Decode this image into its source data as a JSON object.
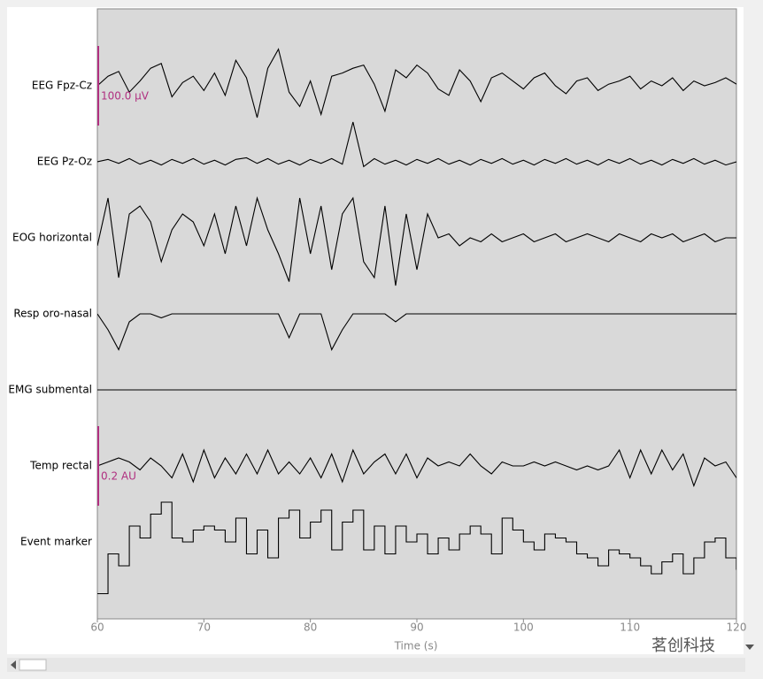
{
  "chart_data": {
    "type": "traces",
    "xlabel": "Time (s)",
    "xlim": [
      60,
      120
    ],
    "xticks": [
      60,
      70,
      80,
      90,
      100,
      110,
      120
    ],
    "x": [
      60,
      61,
      62,
      63,
      64,
      65,
      66,
      67,
      68,
      69,
      70,
      71,
      72,
      73,
      74,
      75,
      76,
      77,
      78,
      79,
      80,
      81,
      82,
      83,
      84,
      85,
      86,
      87,
      88,
      89,
      90,
      91,
      92,
      93,
      94,
      95,
      96,
      97,
      98,
      99,
      100,
      101,
      102,
      103,
      104,
      105,
      106,
      107,
      108,
      109,
      110,
      111,
      112,
      113,
      114,
      115,
      116,
      117,
      118,
      119,
      120
    ],
    "series": [
      {
        "name": "EEG Fpz-Cz",
        "values": [
          0,
          12,
          18,
          -8,
          6,
          22,
          28,
          -14,
          4,
          12,
          -6,
          16,
          -12,
          32,
          10,
          -40,
          22,
          46,
          -8,
          -26,
          6,
          -36,
          12,
          16,
          22,
          26,
          2,
          -32,
          20,
          10,
          26,
          16,
          -4,
          -12,
          20,
          6,
          -20,
          10,
          16,
          6,
          -4,
          10,
          16,
          0,
          -10,
          6,
          10,
          -6,
          2,
          6,
          12,
          -4,
          6,
          0,
          10,
          -6,
          6,
          0,
          4,
          10,
          2
        ]
      },
      {
        "name": "EEG Pz-Oz",
        "values": [
          0,
          3,
          -2,
          4,
          -3,
          2,
          -4,
          3,
          -2,
          4,
          -3,
          2,
          -4,
          3,
          5,
          -2,
          4,
          -3,
          2,
          -4,
          3,
          -2,
          4,
          -3,
          50,
          -6,
          4,
          -3,
          2,
          -4,
          3,
          -2,
          4,
          -3,
          2,
          -4,
          3,
          -2,
          4,
          -3,
          2,
          -4,
          3,
          -2,
          4,
          -3,
          2,
          -4,
          3,
          -2,
          4,
          -3,
          2,
          -4,
          3,
          -2,
          4,
          -3,
          2,
          -4,
          0
        ]
      },
      {
        "name": "EOG horizontal",
        "values": [
          -10,
          50,
          -50,
          30,
          40,
          20,
          -30,
          10,
          30,
          20,
          -10,
          30,
          -20,
          40,
          -10,
          50,
          10,
          -20,
          -55,
          50,
          -20,
          40,
          -40,
          30,
          50,
          -30,
          -50,
          40,
          -60,
          30,
          -40,
          30,
          0,
          5,
          -10,
          0,
          -5,
          5,
          -5,
          0,
          5,
          -5,
          0,
          5,
          -5,
          0,
          5,
          0,
          -5,
          5,
          0,
          -5,
          5,
          0,
          5,
          -5,
          0,
          5,
          -5,
          0,
          0
        ]
      },
      {
        "name": "Resp oro-nasal",
        "values": [
          0,
          -20,
          -45,
          -10,
          0,
          0,
          -5,
          0,
          0,
          0,
          0,
          0,
          0,
          0,
          0,
          0,
          0,
          0,
          -30,
          0,
          0,
          0,
          -45,
          -20,
          0,
          0,
          0,
          0,
          -10,
          0,
          0,
          0,
          0,
          0,
          0,
          0,
          0,
          0,
          0,
          0,
          0,
          0,
          0,
          0,
          0,
          0,
          0,
          0,
          0,
          0,
          0,
          0,
          0,
          0,
          0,
          0,
          0,
          0,
          0,
          0,
          0
        ]
      },
      {
        "name": "EMG submental",
        "values": [
          0,
          0,
          0,
          0,
          0,
          0,
          0,
          0,
          0,
          0,
          0,
          0,
          0,
          0,
          0,
          0,
          0,
          0,
          0,
          0,
          0,
          0,
          0,
          0,
          0,
          0,
          0,
          0,
          0,
          0,
          0,
          0,
          0,
          0,
          0,
          0,
          0,
          0,
          0,
          0,
          0,
          0,
          0,
          0,
          0,
          0,
          0,
          0,
          0,
          0,
          0,
          0,
          0,
          0,
          0,
          0,
          0,
          0,
          0,
          0,
          0
        ]
      },
      {
        "name": "Temp rectal",
        "values": [
          0,
          0.01,
          0.02,
          0.01,
          -0.01,
          0.02,
          0,
          -0.03,
          0.03,
          -0.04,
          0.04,
          -0.03,
          0.02,
          -0.02,
          0.03,
          -0.02,
          0.04,
          -0.02,
          0.01,
          -0.02,
          0.02,
          -0.03,
          0.03,
          -0.04,
          0.04,
          -0.02,
          0.01,
          0.03,
          -0.02,
          0.03,
          -0.03,
          0.02,
          0,
          0.01,
          0,
          0.03,
          0,
          -0.02,
          0.01,
          0,
          0,
          0.01,
          0,
          0.01,
          0,
          -0.01,
          0,
          -0.01,
          0,
          0.04,
          -0.03,
          0.04,
          -0.02,
          0.04,
          -0.01,
          0.03,
          -0.05,
          0.02,
          0,
          0.01,
          -0.03
        ]
      },
      {
        "name": "Event marker",
        "step": true,
        "values": [
          -0.13,
          -0.03,
          -0.06,
          0.04,
          0.01,
          0.07,
          0.1,
          0.01,
          0,
          0.03,
          0.04,
          0.03,
          0,
          0.06,
          -0.03,
          0.03,
          -0.04,
          0.06,
          0.08,
          0.01,
          0.05,
          0.08,
          -0.02,
          0.05,
          0.08,
          -0.02,
          0.04,
          -0.03,
          0.04,
          0,
          0.02,
          -0.03,
          0.01,
          -0.02,
          0.02,
          0.04,
          0.02,
          -0.03,
          0.06,
          0.03,
          0,
          -0.02,
          0.02,
          0.01,
          0,
          -0.03,
          -0.04,
          -0.06,
          -0.02,
          -0.03,
          -0.04,
          -0.06,
          -0.08,
          -0.05,
          -0.03,
          -0.08,
          -0.04,
          0,
          0.01,
          -0.04,
          -0.07
        ]
      }
    ],
    "scale_bars": [
      {
        "value": 100,
        "label": "100.0 µV",
        "channels": [
          0,
          1,
          2,
          3,
          4
        ]
      },
      {
        "value": 0.2,
        "label": "0.2 AU",
        "channels": [
          5,
          6
        ]
      }
    ],
    "watermark": "茗创科技"
  }
}
